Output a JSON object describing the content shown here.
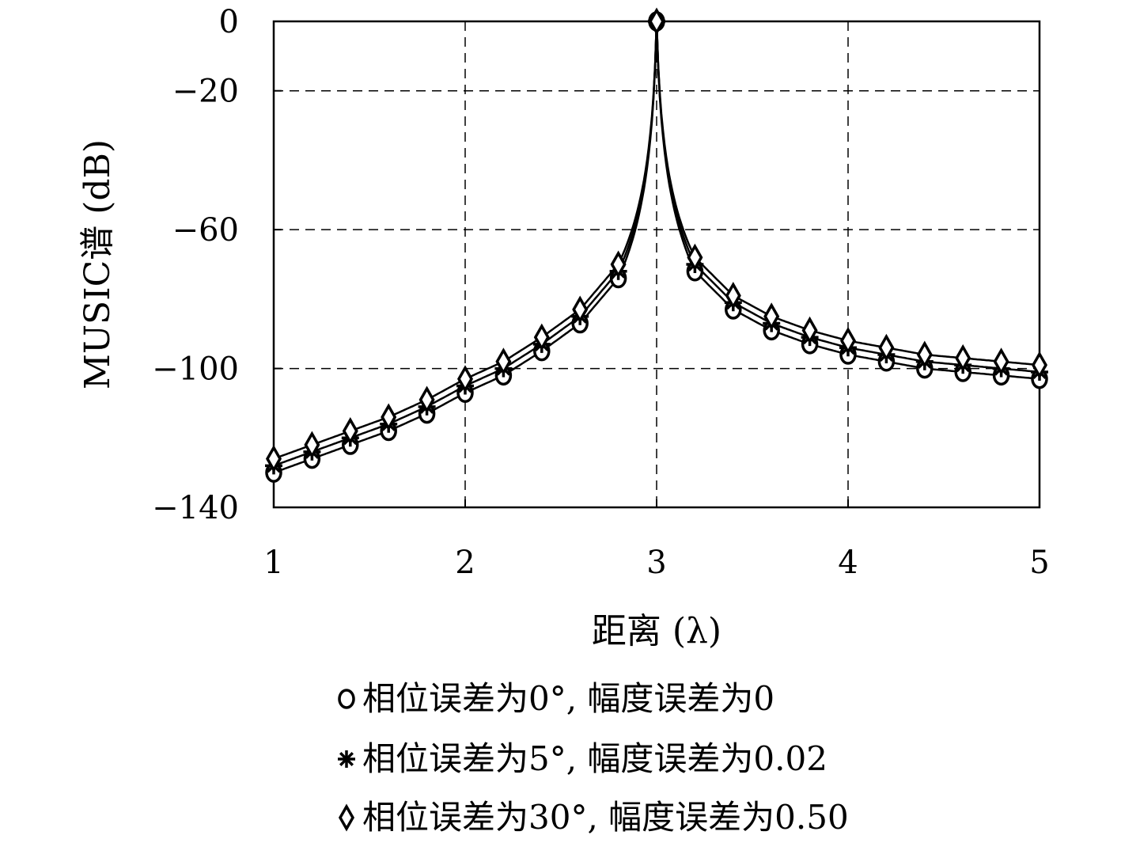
{
  "chart_data": {
    "type": "line",
    "xlabel": "距离 (λ)",
    "ylabel": "MUSIC谱 (dB)",
    "xlim": [
      1,
      5
    ],
    "ylim": [
      -140,
      0
    ],
    "xticks": [
      1,
      2,
      3,
      4,
      5
    ],
    "yticks": [
      0,
      -20,
      -60,
      -100,
      -140
    ],
    "xtick_labels": [
      "1",
      "2",
      "3",
      "4",
      "5"
    ],
    "ytick_labels": [
      "0",
      "−20",
      "−60",
      "−100",
      "−140"
    ],
    "grid": true,
    "legend_position": "bottom",
    "x": [
      1.0,
      1.2,
      1.4,
      1.6,
      1.8,
      2.0,
      2.2,
      2.4,
      2.6,
      2.8,
      3.0,
      3.2,
      3.4,
      3.6,
      3.8,
      4.0,
      4.2,
      4.4,
      4.6,
      4.8,
      5.0
    ],
    "series": [
      {
        "name": "相位误差为0°, 幅度误差为0",
        "marker": "circle",
        "values": [
          -130,
          -126,
          -122,
          -118,
          -113,
          -107,
          -102,
          -95,
          -87,
          -74,
          0,
          -72,
          -83,
          -89,
          -93,
          -96,
          -98,
          -100,
          -101,
          -102,
          -103
        ]
      },
      {
        "name": "相位误差为5°, 幅度误差为0.02",
        "marker": "asterisk",
        "values": [
          -128,
          -124,
          -120,
          -116,
          -111,
          -105,
          -100,
          -93,
          -85,
          -72,
          0,
          -70,
          -81,
          -87,
          -91,
          -94,
          -96,
          -98,
          -99,
          -100,
          -101
        ]
      },
      {
        "name": "相位误差为30°, 幅度误差为0.50",
        "marker": "diamond",
        "values": [
          -126,
          -122,
          -118,
          -114,
          -109,
          -103,
          -98,
          -91,
          -83,
          -70,
          0,
          -68,
          -79,
          -85,
          -89,
          -92,
          -94,
          -96,
          -97,
          -98,
          -99
        ]
      }
    ]
  },
  "colors": {
    "line": "#000000",
    "grid": "#000000",
    "background": "#ffffff"
  }
}
